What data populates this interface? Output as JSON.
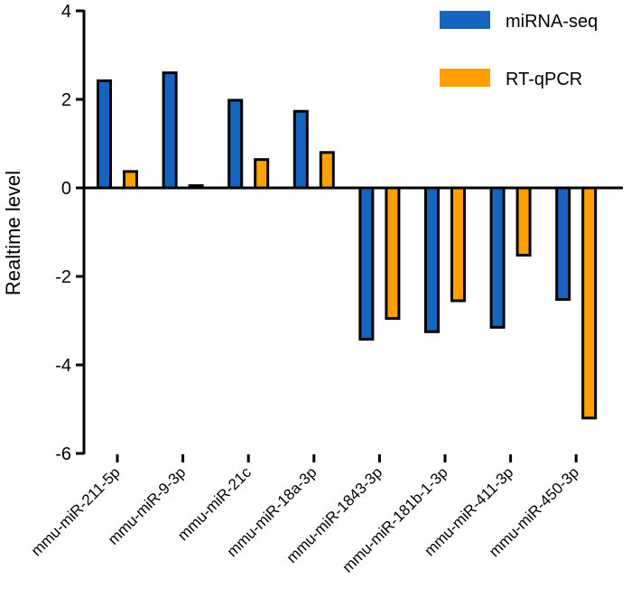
{
  "chart_data": {
    "type": "bar",
    "title": "",
    "xlabel": "",
    "ylabel": "Realtime level",
    "ylim": [
      -6,
      4
    ],
    "yticks": [
      4,
      2,
      0,
      -2,
      -4,
      -6
    ],
    "ytick_labels": [
      "4",
      "2",
      "0",
      "-2",
      "-4",
      "-6"
    ],
    "categories": [
      "mmu-miR-211-5p",
      "mmu-miR-9-3p",
      "mmu-miR-21c",
      "mmu-miR-18a-3p",
      "mmu-miR-1843-3p",
      "mmu-miR-181b-1-3p",
      "mmu-miR-411-3p",
      "mmu-miR-450-3p"
    ],
    "series": [
      {
        "name": "miRNA-seq",
        "color": "#1565c0",
        "values": [
          2.42,
          2.6,
          1.98,
          1.73,
          -3.42,
          -3.25,
          -3.15,
          -2.52
        ]
      },
      {
        "name": "RT-qPCR",
        "color": "#ff9f00",
        "values": [
          0.37,
          0.05,
          0.64,
          0.8,
          -2.95,
          -2.55,
          -1.52,
          -5.2
        ]
      }
    ],
    "legend_position": "top-right",
    "grid": false
  }
}
